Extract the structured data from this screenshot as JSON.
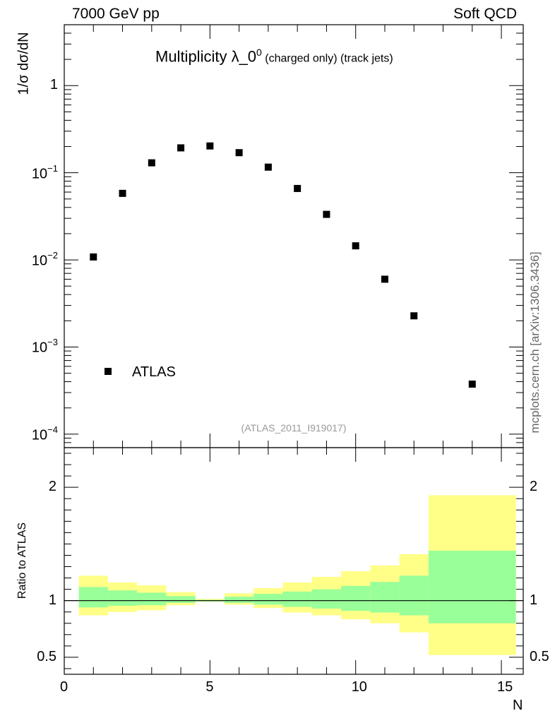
{
  "header": {
    "left": "7000 GeV pp",
    "right": "Soft QCD"
  },
  "title": {
    "main": "Multiplicity λ_0",
    "superscript": "0",
    "sub": " (charged only) (track jets)"
  },
  "side_label": "mcplots.cern.ch [arXiv:1306.3436]",
  "analysis_ref": "(ATLAS_2011_I919017)",
  "legend": {
    "label": "ATLAS"
  },
  "colors": {
    "band_outer": "#ffff88",
    "band_inner": "#99ff99",
    "marker": "#000000",
    "refline": "#000000"
  },
  "chart_data": [
    {
      "type": "scatter",
      "name": "main",
      "ylabel": "1/σ dσ/dN",
      "yscale": "log",
      "ylim": [
        7e-05,
        5
      ],
      "y_ticks": [
        {
          "value": 1,
          "label": "1"
        },
        {
          "value": 0.1,
          "base": "10",
          "exp": "−1"
        },
        {
          "value": 0.01,
          "base": "10",
          "exp": "−2"
        },
        {
          "value": 0.001,
          "base": "10",
          "exp": "−3"
        },
        {
          "value": 0.0001,
          "base": "10",
          "exp": "−4"
        }
      ],
      "series": [
        {
          "name": "ATLAS",
          "x": [
            1,
            2,
            3,
            4,
            5,
            6,
            7,
            8,
            9,
            10,
            11,
            12,
            14
          ],
          "y": [
            0.0108,
            0.058,
            0.13,
            0.193,
            0.203,
            0.17,
            0.116,
            0.066,
            0.0333,
            0.0145,
            0.006,
            0.00228,
            0.000375
          ]
        }
      ]
    },
    {
      "type": "area",
      "name": "ratio",
      "ylabel": "Ratio to ATLAS",
      "xlabel": "N",
      "xlim": [
        0,
        15.75
      ],
      "ylim": [
        0.35,
        2.35
      ],
      "x_ticks": [
        0,
        5,
        10,
        15
      ],
      "y_ticks": [
        0.5,
        1,
        2
      ],
      "bins": [
        {
          "lo": 0.5,
          "hi": 1.5,
          "outer": [
            0.87,
            1.22
          ],
          "inner": [
            0.94,
            1.12
          ]
        },
        {
          "lo": 1.5,
          "hi": 2.5,
          "outer": [
            0.9,
            1.16
          ],
          "inner": [
            0.955,
            1.09
          ]
        },
        {
          "lo": 2.5,
          "hi": 3.5,
          "outer": [
            0.915,
            1.135
          ],
          "inner": [
            0.96,
            1.07
          ]
        },
        {
          "lo": 3.5,
          "hi": 4.5,
          "outer": [
            0.96,
            1.075
          ],
          "inner": [
            0.98,
            1.04
          ]
        },
        {
          "lo": 4.5,
          "hi": 5.5,
          "outer": [
            0.99,
            1.015
          ],
          "inner": [
            0.993,
            1.007
          ]
        },
        {
          "lo": 5.5,
          "hi": 6.5,
          "outer": [
            0.965,
            1.065
          ],
          "inner": [
            0.98,
            1.035
          ]
        },
        {
          "lo": 6.5,
          "hi": 7.5,
          "outer": [
            0.935,
            1.11
          ],
          "inner": [
            0.965,
            1.06
          ]
        },
        {
          "lo": 7.5,
          "hi": 8.5,
          "outer": [
            0.895,
            1.16
          ],
          "inner": [
            0.945,
            1.08
          ]
        },
        {
          "lo": 8.5,
          "hi": 9.5,
          "outer": [
            0.87,
            1.21
          ],
          "inner": [
            0.93,
            1.1
          ]
        },
        {
          "lo": 9.5,
          "hi": 10.5,
          "outer": [
            0.835,
            1.26
          ],
          "inner": [
            0.91,
            1.13
          ]
        },
        {
          "lo": 10.5,
          "hi": 11.5,
          "outer": [
            0.8,
            1.31
          ],
          "inner": [
            0.895,
            1.165
          ]
        },
        {
          "lo": 11.5,
          "hi": 12.5,
          "outer": [
            0.72,
            1.41
          ],
          "inner": [
            0.87,
            1.22
          ]
        },
        {
          "lo": 12.5,
          "hi": 15.5,
          "outer": [
            0.52,
            1.93
          ],
          "inner": [
            0.8,
            1.44
          ]
        }
      ],
      "reference_line": 1
    }
  ]
}
